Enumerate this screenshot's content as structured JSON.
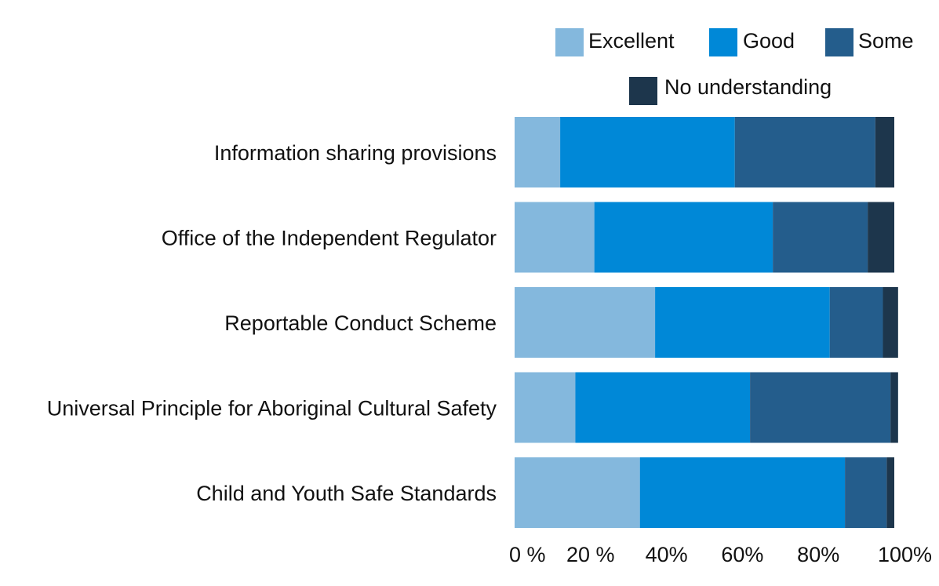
{
  "chart_data": {
    "type": "bar",
    "orientation": "horizontal",
    "stacked": true,
    "categories": [
      "Information sharing provisions",
      "Office of the Independent Regulator",
      "Reportable Conduct Scheme",
      "Universal Principle for Aboriginal Cultural Safety",
      "Child and Youth Safe Standards"
    ],
    "series": [
      {
        "name": "Excellent",
        "color": "#84b8dd",
        "values": [
          12,
          21,
          37,
          16,
          33
        ]
      },
      {
        "name": "Good",
        "color": "#0088d7",
        "values": [
          46,
          47,
          46,
          46,
          54
        ]
      },
      {
        "name": "Some",
        "color": "#245d8c",
        "values": [
          37,
          25,
          14,
          37,
          11
        ]
      },
      {
        "name": "No understanding",
        "color": "#1d364c",
        "values": [
          5,
          7,
          4,
          2,
          2
        ]
      }
    ],
    "xlim": [
      0,
      100
    ],
    "x_ticks": [
      "0 %",
      "20 %",
      "40%",
      "60%",
      "80%",
      "100%"
    ],
    "legend_position": "top-right",
    "grid": false,
    "title": "",
    "xlabel": "",
    "ylabel": ""
  }
}
